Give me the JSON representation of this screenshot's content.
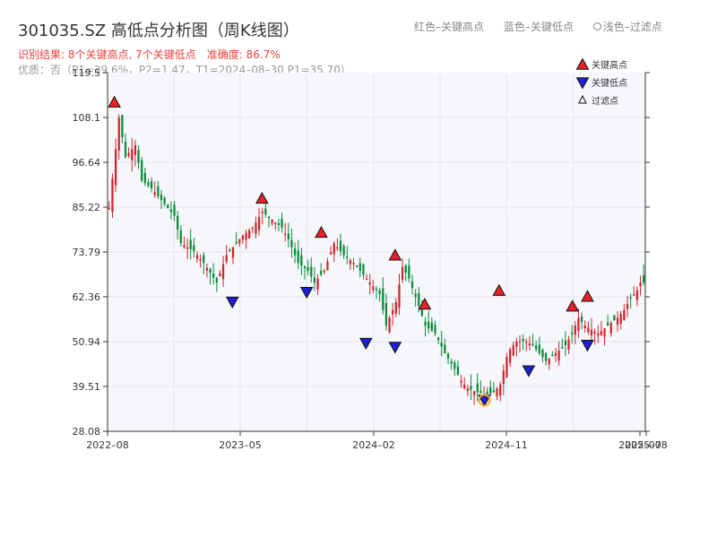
{
  "header": {
    "title": "301035.SZ 高低点分析图（周K线图）",
    "legend_red": "红色–关键高点",
    "legend_blue": "蓝色–关键低点",
    "legend_hollow": "浅色–过滤点",
    "summary": "识别结果: 8个关键高点, 7个关键低点",
    "accuracy": "准确度: 86.7%",
    "quality": "优质：否（P1=39.6%，P2=1.47，T1=2024–08–30 P1=35.70）"
  },
  "colors": {
    "up": "#d0242b",
    "down": "#0a8a3a",
    "high_marker": "#e8212b",
    "low_marker": "#1f1fd0",
    "filtered_marker": "#f5a623",
    "plot_bg": "#f5f7fa",
    "grid": "#e2e6ec",
    "axis": "#333333"
  },
  "chart_data": {
    "type": "candlestick",
    "title": "301035.SZ 高低点分析图（周K线图）",
    "ylim": [
      28.08,
      119.5
    ],
    "y_ticks": [
      "119.5",
      "108.1",
      "96.64",
      "85.22",
      "73.79",
      "62.36",
      "50.94",
      "39.51",
      "28.08"
    ],
    "x_ticks": [
      "2022–08",
      "2023–05",
      "2024–02",
      "2024–11",
      "2025–07",
      "2025–08"
    ],
    "legend": {
      "position": "top-right",
      "items": [
        "关键高点",
        "关键低点",
        "过滤点"
      ]
    },
    "key_highs": [
      {
        "date": "2022-08",
        "value": 111.0
      },
      {
        "date": "2023-06",
        "value": 86.5
      },
      {
        "date": "2023-10",
        "value": 77.8
      },
      {
        "date": "2024-03",
        "value": 72.0
      },
      {
        "date": "2024-05",
        "value": 59.5
      },
      {
        "date": "2024-10",
        "value": 63.0
      },
      {
        "date": "2025-03",
        "value": 59.0
      },
      {
        "date": "2025-04",
        "value": 61.5
      }
    ],
    "key_lows": [
      {
        "date": "2023-04",
        "value": 62.0
      },
      {
        "date": "2023-09",
        "value": 64.5
      },
      {
        "date": "2024-01",
        "value": 51.5
      },
      {
        "date": "2024-03",
        "value": 50.5
      },
      {
        "date": "2024-09",
        "value": 37.0
      },
      {
        "date": "2024-12",
        "value": 44.5
      },
      {
        "date": "2025-04",
        "value": 51.0
      }
    ],
    "filtered_points": [
      {
        "date": "2024-09",
        "value": 36.0
      }
    ],
    "price_path": [
      [
        0,
        85
      ],
      [
        2,
        100
      ],
      [
        3,
        108
      ],
      [
        5,
        98
      ],
      [
        8,
        101
      ],
      [
        10,
        92
      ],
      [
        13,
        90
      ],
      [
        16,
        87
      ],
      [
        20,
        83
      ],
      [
        22,
        76
      ],
      [
        26,
        74
      ],
      [
        29,
        71
      ],
      [
        33,
        66
      ],
      [
        36,
        73
      ],
      [
        38,
        75
      ],
      [
        41,
        78
      ],
      [
        44,
        80
      ],
      [
        47,
        84
      ],
      [
        50,
        82
      ],
      [
        53,
        80
      ],
      [
        55,
        77
      ],
      [
        58,
        71
      ],
      [
        61,
        69
      ],
      [
        63,
        66
      ],
      [
        66,
        69
      ],
      [
        69,
        76
      ],
      [
        72,
        73
      ],
      [
        75,
        71
      ],
      [
        77,
        69
      ],
      [
        80,
        66
      ],
      [
        83,
        63
      ],
      [
        85,
        55
      ],
      [
        88,
        61
      ],
      [
        90,
        70
      ],
      [
        92,
        67
      ],
      [
        95,
        60
      ],
      [
        97,
        55
      ],
      [
        100,
        53
      ],
      [
        103,
        48
      ],
      [
        106,
        44
      ],
      [
        108,
        41
      ],
      [
        110,
        39
      ],
      [
        113,
        38
      ],
      [
        116,
        37.5
      ],
      [
        118,
        38
      ],
      [
        120,
        40
      ],
      [
        122,
        47
      ],
      [
        123,
        49
      ],
      [
        125,
        51
      ],
      [
        128,
        51
      ],
      [
        130,
        50
      ],
      [
        132,
        48
      ],
      [
        134,
        46
      ],
      [
        137,
        48
      ],
      [
        140,
        50
      ],
      [
        142,
        53
      ],
      [
        144,
        57
      ],
      [
        146,
        55
      ],
      [
        148,
        54
      ],
      [
        150,
        53
      ],
      [
        153,
        55
      ],
      [
        156,
        57
      ],
      [
        158,
        59
      ],
      [
        160,
        62
      ],
      [
        162,
        64
      ],
      [
        163,
        66
      ]
    ]
  }
}
